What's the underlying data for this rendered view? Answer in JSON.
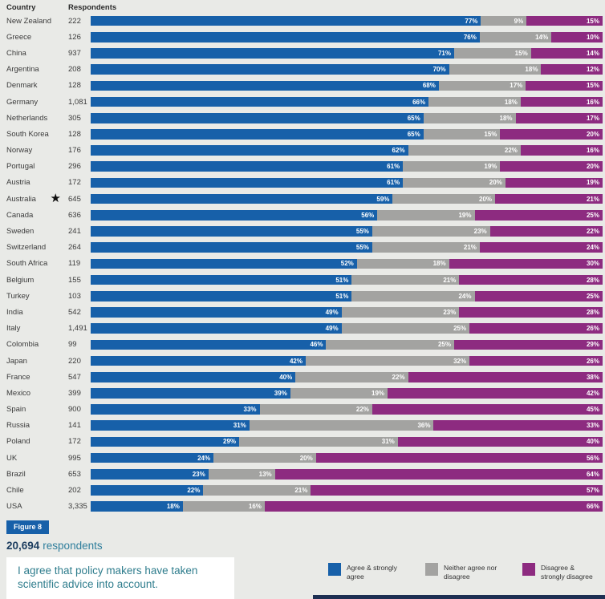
{
  "header": {
    "country": "Country",
    "respondents": "Respondents"
  },
  "icons": {
    "australia_star": "★"
  },
  "colors": {
    "agree": "#1760a9",
    "neither": "#a3a3a1",
    "disagree": "#8d2b80",
    "badge_bg": "#1760a9",
    "badge_text": "#ffffff",
    "total_number": "#1c3d5f",
    "total_suffix": "#2f7e9c",
    "caption_text": "#2f7d8d",
    "bottom_strip": "#1d2f52",
    "background": "#e9eae7"
  },
  "chart_data": {
    "type": "bar",
    "stacked": true,
    "orientation": "horizontal",
    "unit": "%",
    "xlim": [
      0,
      100
    ],
    "grid": false,
    "series_names": [
      "Agree & strongly agree",
      "Neither agree nor disagree",
      "Disagree & strongly disagree"
    ],
    "rows": [
      {
        "country": "New Zealand",
        "respondents": "222",
        "agree": 77,
        "neither": 9,
        "disagree": 15
      },
      {
        "country": "Greece",
        "respondents": "126",
        "agree": 76,
        "neither": 14,
        "disagree": 10
      },
      {
        "country": "China",
        "respondents": "937",
        "agree": 71,
        "neither": 15,
        "disagree": 14
      },
      {
        "country": "Argentina",
        "respondents": "208",
        "agree": 70,
        "neither": 18,
        "disagree": 12
      },
      {
        "country": "Denmark",
        "respondents": "128",
        "agree": 68,
        "neither": 17,
        "disagree": 15
      },
      {
        "country": "Germany",
        "respondents": "1,081",
        "agree": 66,
        "neither": 18,
        "disagree": 16
      },
      {
        "country": "Netherlands",
        "respondents": "305",
        "agree": 65,
        "neither": 18,
        "disagree": 17
      },
      {
        "country": "South Korea",
        "respondents": "128",
        "agree": 65,
        "neither": 15,
        "disagree": 20
      },
      {
        "country": "Norway",
        "respondents": "176",
        "agree": 62,
        "neither": 22,
        "disagree": 16
      },
      {
        "country": "Portugal",
        "respondents": "296",
        "agree": 61,
        "neither": 19,
        "disagree": 20
      },
      {
        "country": "Austria",
        "respondents": "172",
        "agree": 61,
        "neither": 20,
        "disagree": 19
      },
      {
        "country": "Australia",
        "respondents": "645",
        "agree": 59,
        "neither": 20,
        "disagree": 21,
        "star": true
      },
      {
        "country": "Canada",
        "respondents": "636",
        "agree": 56,
        "neither": 19,
        "disagree": 25
      },
      {
        "country": "Sweden",
        "respondents": "241",
        "agree": 55,
        "neither": 23,
        "disagree": 22
      },
      {
        "country": "Switzerland",
        "respondents": "264",
        "agree": 55,
        "neither": 21,
        "disagree": 24
      },
      {
        "country": "South Africa",
        "respondents": "119",
        "agree": 52,
        "neither": 18,
        "disagree": 30
      },
      {
        "country": "Belgium",
        "respondents": "155",
        "agree": 51,
        "neither": 21,
        "disagree": 28
      },
      {
        "country": "Turkey",
        "respondents": "103",
        "agree": 51,
        "neither": 24,
        "disagree": 25
      },
      {
        "country": "India",
        "respondents": "542",
        "agree": 49,
        "neither": 23,
        "disagree": 28
      },
      {
        "country": "Italy",
        "respondents": "1,491",
        "agree": 49,
        "neither": 25,
        "disagree": 26
      },
      {
        "country": "Colombia",
        "respondents": "99",
        "agree": 46,
        "neither": 25,
        "disagree": 29
      },
      {
        "country": "Japan",
        "respondents": "220",
        "agree": 42,
        "neither": 32,
        "disagree": 26
      },
      {
        "country": "France",
        "respondents": "547",
        "agree": 40,
        "neither": 22,
        "disagree": 38
      },
      {
        "country": "Mexico",
        "respondents": "399",
        "agree": 39,
        "neither": 19,
        "disagree": 42
      },
      {
        "country": "Spain",
        "respondents": "900",
        "agree": 33,
        "neither": 22,
        "disagree": 45
      },
      {
        "country": "Russia",
        "respondents": "141",
        "agree": 31,
        "neither": 36,
        "disagree": 33
      },
      {
        "country": "Poland",
        "respondents": "172",
        "agree": 29,
        "neither": 31,
        "disagree": 40
      },
      {
        "country": "UK",
        "respondents": "995",
        "agree": 24,
        "neither": 20,
        "disagree": 56
      },
      {
        "country": "Brazil",
        "respondents": "653",
        "agree": 23,
        "neither": 13,
        "disagree": 64
      },
      {
        "country": "Chile",
        "respondents": "202",
        "agree": 22,
        "neither": 21,
        "disagree": 57
      },
      {
        "country": "USA",
        "respondents": "3,335",
        "agree": 18,
        "neither": 16,
        "disagree": 66
      }
    ]
  },
  "footer": {
    "figure_label": "Figure 8",
    "total_respondents": "20,694",
    "total_respondents_suffix": "respondents",
    "caption": "I agree that policy makers have taken scientific advice into account.",
    "legend": [
      {
        "key": "agree",
        "label": "Agree & strongly agree",
        "color": "#1760a9"
      },
      {
        "key": "neither",
        "label": "Neither agree nor disagree",
        "color": "#a3a3a1"
      },
      {
        "key": "disagree",
        "label": "Disagree & strongly disagree",
        "color": "#8d2b80"
      }
    ]
  }
}
